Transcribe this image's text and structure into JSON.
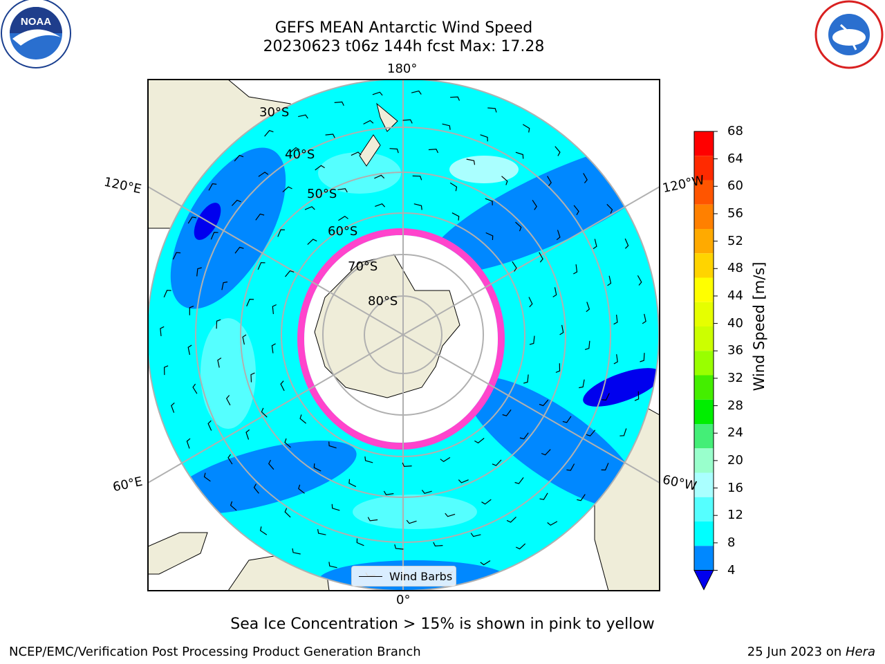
{
  "title_line1": "GEFS MEAN Antarctic Wind Speed",
  "title_line2": "20230623 t06z 144h fcst   Max: 17.28",
  "map": {
    "longitude_labels": {
      "top": "180°",
      "bottom": "0°",
      "left_upper": "120°E",
      "left_lower": "60°E",
      "right_upper": "120°W",
      "right_lower": "60°W"
    },
    "latitude_labels": [
      "30°S",
      "40°S",
      "50°S",
      "60°S",
      "70°S",
      "80°S"
    ],
    "legend_label": "Wind Barbs"
  },
  "colorbar": {
    "label": "Wind Speed [m/s]",
    "ticks": [
      "68",
      "64",
      "60",
      "56",
      "52",
      "48",
      "44",
      "40",
      "36",
      "32",
      "28",
      "24",
      "20",
      "16",
      "12",
      "8",
      "4"
    ],
    "colors": [
      "#ff0000",
      "#ff2a00",
      "#ff5500",
      "#ff8000",
      "#ffaa00",
      "#ffd400",
      "#ffff00",
      "#e6ff00",
      "#ccff00",
      "#99ff00",
      "#44ee00",
      "#00ee00",
      "#44ee77",
      "#99ffcc",
      "#aaffff",
      "#55ffff",
      "#00ffff",
      "#0088ff"
    ],
    "extend_color": "#0000ee"
  },
  "caption": "Sea Ice Concentration > 15% is shown in pink to yellow",
  "footer": {
    "left": "NCEP/EMC/Verification Post Processing Product Generation Branch",
    "date": "25 Jun 2023 on ",
    "machine": "Hera"
  },
  "logos": {
    "left": "noara-logo",
    "right": "nws-logo"
  }
}
